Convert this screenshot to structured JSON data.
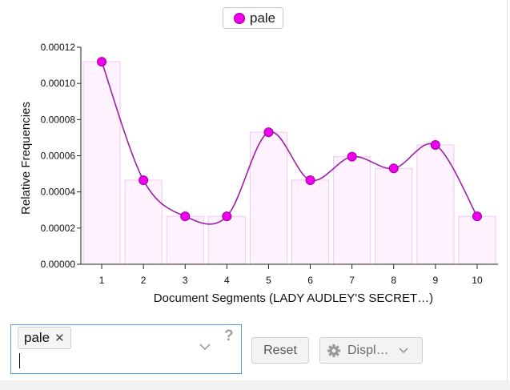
{
  "legend": {
    "label": "pale",
    "marker_color": "#ee00ee"
  },
  "chart_data": {
    "type": "bar",
    "categories": [
      "1",
      "2",
      "3",
      "4",
      "5",
      "6",
      "7",
      "8",
      "9",
      "10"
    ],
    "series": [
      {
        "name": "pale",
        "values": [
          0.000112,
          4.65e-05,
          2.65e-05,
          2.65e-05,
          7.3e-05,
          4.65e-05,
          5.95e-05,
          5.3e-05,
          6.6e-05,
          2.65e-05
        ]
      }
    ],
    "overlay": "line",
    "xlabel": "Document Segments (LADY AUDLEY'S SECRET…)",
    "ylabel": "Relative Frequencies",
    "ylim": [
      0,
      0.00012
    ],
    "yticks": [
      "0.00000",
      "0.00002",
      "0.00004",
      "0.00006",
      "0.00008",
      "0.00010",
      "0.00012"
    ],
    "grid": false,
    "legend_position": "top-center",
    "colors": {
      "line": "#9e1fa8",
      "marker": "#ee00ee",
      "bar_fill": "#fdf2fd",
      "bar_stroke": "#f2c6f2"
    }
  },
  "controls": {
    "search": {
      "tag": "pale",
      "close_symbol": "✕",
      "help": "?"
    },
    "reset_label": "Reset",
    "display_label": "Displ…"
  }
}
